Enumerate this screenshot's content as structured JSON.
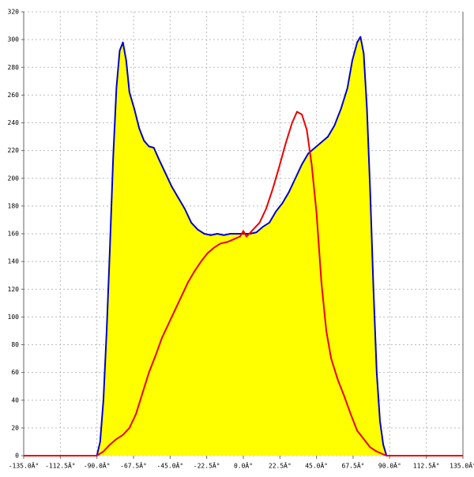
{
  "chart_data": {
    "type": "line",
    "xlim": [
      -135,
      135
    ],
    "ylim": [
      0,
      320
    ],
    "xticks": [
      {
        "value": -135,
        "label": "-135.0Â°"
      },
      {
        "value": -112.5,
        "label": "-112.5Â°"
      },
      {
        "value": -90,
        "label": "-90.0Â°"
      },
      {
        "value": -67.5,
        "label": "-67.5Â°"
      },
      {
        "value": -45,
        "label": "-45.0Â°"
      },
      {
        "value": -22.5,
        "label": "-22.5Â°"
      },
      {
        "value": 0,
        "label": "0.0Â°"
      },
      {
        "value": 22.5,
        "label": "22.5Â°"
      },
      {
        "value": 45,
        "label": "45.0Â°"
      },
      {
        "value": 67.5,
        "label": "67.5Â°"
      },
      {
        "value": 90,
        "label": "90.0Â°"
      },
      {
        "value": 112.5,
        "label": "112.5Â°"
      },
      {
        "value": 135,
        "label": "135.0Â°"
      }
    ],
    "yticks": [
      0,
      20,
      40,
      60,
      80,
      100,
      120,
      140,
      160,
      180,
      200,
      220,
      240,
      260,
      280,
      300,
      320
    ],
    "grid": true,
    "series": [
      {
        "color": "#0000cc",
        "fill": "#ffff00",
        "x": [
          -90,
          -88,
          -86,
          -84,
          -82,
          -80,
          -78,
          -76,
          -74,
          -72,
          -70,
          -67,
          -64,
          -61,
          -58,
          -55,
          -52,
          -48,
          -44,
          -40,
          -36,
          -32,
          -28,
          -24,
          -20,
          -16,
          -12,
          -8,
          -4,
          0,
          4,
          8,
          12,
          16,
          20,
          24,
          28,
          32,
          36,
          40,
          44,
          48,
          52,
          56,
          60,
          64,
          67,
          70,
          72,
          74,
          76,
          78,
          80,
          82,
          84,
          86,
          88,
          90
        ],
        "values": [
          0,
          10,
          40,
          90,
          150,
          215,
          265,
          292,
          298,
          285,
          262,
          250,
          236,
          227,
          223,
          222,
          214,
          204,
          194,
          186,
          178,
          168,
          163,
          160,
          159,
          160,
          159,
          160,
          160,
          160,
          160,
          161,
          165,
          168,
          176,
          182,
          190,
          200,
          210,
          218,
          222,
          226,
          230,
          238,
          250,
          265,
          285,
          298,
          302,
          290,
          250,
          190,
          120,
          60,
          25,
          8,
          0,
          0
        ]
      },
      {
        "color": "#ee0000",
        "x": [
          -135,
          -90,
          -86,
          -82,
          -78,
          -74,
          -70,
          -66,
          -62,
          -58,
          -54,
          -50,
          -46,
          -42,
          -38,
          -34,
          -30,
          -26,
          -22,
          -18,
          -14,
          -10,
          -6,
          -2,
          0,
          2,
          6,
          10,
          14,
          18,
          22,
          26,
          30,
          33,
          36,
          39,
          42,
          45,
          48,
          51,
          54,
          58,
          62,
          66,
          70,
          74,
          78,
          82,
          86,
          88,
          135
        ],
        "values": [
          0,
          0,
          3,
          8,
          12,
          15,
          20,
          30,
          45,
          60,
          72,
          85,
          95,
          105,
          115,
          125,
          133,
          140,
          146,
          150,
          153,
          154,
          156,
          158,
          162,
          158,
          163,
          168,
          178,
          192,
          208,
          225,
          240,
          248,
          246,
          235,
          210,
          175,
          125,
          90,
          70,
          55,
          43,
          30,
          18,
          12,
          6,
          3,
          1,
          0,
          0
        ]
      }
    ]
  }
}
